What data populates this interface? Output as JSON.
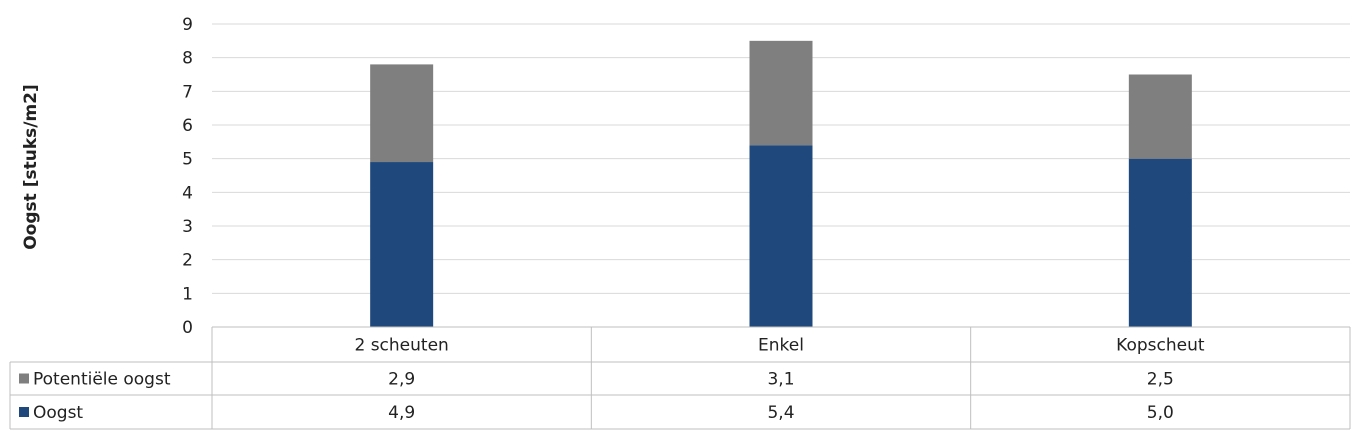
{
  "chart_data": {
    "type": "bar",
    "stacked": true,
    "categories": [
      "2 scheuten",
      "Enkel",
      "Kopscheut"
    ],
    "series": [
      {
        "name": "Oogst",
        "values": [
          4.9,
          5.4,
          5.0
        ],
        "display": [
          "4,9",
          "5,4",
          "5,0"
        ],
        "color": "#1f497d"
      },
      {
        "name": "Potentiële oogst",
        "values": [
          2.9,
          3.1,
          2.5
        ],
        "display": [
          "2,9",
          "3,1",
          "2,5"
        ],
        "color": "#7f7f7f"
      }
    ],
    "table_rows": [
      "Potentiële oogst",
      "Oogst"
    ],
    "ylabel": "Oogst [stuks/m2]",
    "xlabel": "",
    "ylim": [
      0,
      9
    ],
    "yticks": [
      0,
      1,
      2,
      3,
      4,
      5,
      6,
      7,
      8,
      9
    ],
    "grid": true,
    "data_table": true,
    "gridline_color": "#d9d9d9",
    "axis_color": "#bfbfbf"
  }
}
